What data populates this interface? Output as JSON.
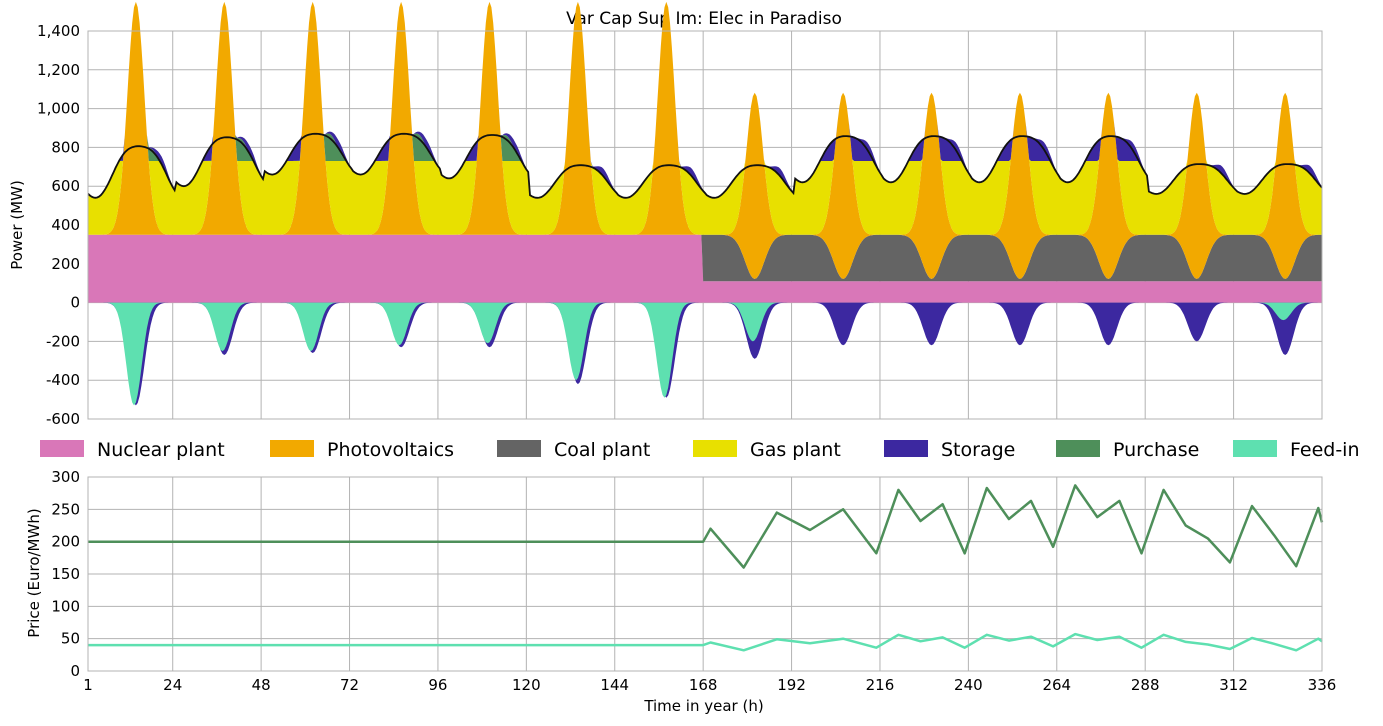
{
  "chart_data": [
    {
      "type": "area",
      "title": "Var Cap Sup Im: Elec in Paradiso",
      "xlabel": "",
      "ylabel": "Power (MW)",
      "xlim": [
        1,
        336
      ],
      "ylim": [
        -600,
        1400
      ],
      "yticks": [
        -600,
        -400,
        -200,
        0,
        200,
        400,
        600,
        800,
        1000,
        1200,
        1400
      ],
      "ytick_labels": [
        "-600",
        "-400",
        "-200",
        "0",
        "200",
        "400",
        "600",
        "800",
        "1,000",
        "1,200",
        "1,400"
      ],
      "grid": true,
      "stacked": true,
      "legend": {
        "placement": "below",
        "entries": [
          {
            "name": "Nuclear plant",
            "color": "#d977b8"
          },
          {
            "name": "Photovoltaics",
            "color": "#f2a900"
          },
          {
            "name": "Coal plant",
            "color": "#646464"
          },
          {
            "name": "Gas plant",
            "color": "#e8e000"
          },
          {
            "name": "Storage",
            "color": "#3c28a0"
          },
          {
            "name": "Purchase",
            "color": "#4e8f5a"
          },
          {
            "name": "Feed-in",
            "color": "#5ee0b0"
          }
        ]
      },
      "series": [
        {
          "name": "Nuclear plant",
          "values_by_period": [
            {
              "x_from": 1,
              "x_to": 168,
              "value": 350
            },
            {
              "x_from": 168,
              "x_to": 336,
              "value": 110
            }
          ]
        },
        {
          "name": "Coal plant",
          "values_by_period": [
            {
              "x_from": 1,
              "x_to": 168,
              "value": 0
            },
            {
              "x_from": 168,
              "x_to": 336,
              "value": 240
            }
          ],
          "daily_peak": [
            0,
            0,
            0,
            0,
            0,
            0,
            0,
            0,
            800,
            810,
            820,
            830,
            890,
            450
          ]
        },
        {
          "name": "Photovoltaics",
          "daily_peak": [
            1200,
            1200,
            1200,
            1200,
            1200,
            1200,
            1200,
            960,
            960,
            960,
            960,
            960,
            960,
            960
          ]
        },
        {
          "name": "Gas plant",
          "typical_level": 730
        },
        {
          "name": "Storage",
          "daily_min": [
            -530,
            -270,
            -260,
            -230,
            -230,
            -420,
            -490,
            -290,
            -220,
            -220,
            -220,
            -220,
            -200,
            -270
          ]
        },
        {
          "name": "Purchase",
          "daily_peak": [
            960,
            960,
            960,
            960,
            960,
            0,
            0,
            0,
            0,
            0,
            0,
            0,
            0,
            0
          ]
        },
        {
          "name": "Feed-in",
          "daily_min": [
            -530,
            -250,
            -250,
            -220,
            -210,
            -400,
            -490,
            -200,
            0,
            0,
            0,
            0,
            0,
            -90
          ]
        }
      ],
      "line": {
        "name": "Demand",
        "color": "#111111",
        "daily_peak": [
          920,
          960,
          960,
          960,
          960,
          780,
          780,
          780,
          960,
          960,
          960,
          960,
          780,
          780
        ],
        "daily_min": [
          540,
          600,
          660,
          660,
          640,
          540,
          540,
          540,
          620,
          620,
          620,
          620,
          560,
          560
        ]
      }
    },
    {
      "type": "line",
      "title": "",
      "xlabel": "Time in year (h)",
      "ylabel": "Price (Euro/MWh)",
      "xlim": [
        1,
        336
      ],
      "ylim": [
        0,
        300
      ],
      "xticks": [
        1,
        24,
        48,
        72,
        96,
        120,
        144,
        168,
        192,
        216,
        240,
        264,
        288,
        312,
        336
      ],
      "xtick_labels": [
        "1",
        "24",
        "48",
        "72",
        "96",
        "120",
        "144",
        "168",
        "192",
        "216",
        "240",
        "264",
        "288",
        "312",
        "336"
      ],
      "yticks": [
        0,
        50,
        100,
        150,
        200,
        250,
        300
      ],
      "ytick_labels": [
        "0",
        "50",
        "100",
        "150",
        "200",
        "250",
        "300"
      ],
      "grid": true,
      "series": [
        {
          "name": "Purchase",
          "color": "#4e8f5a",
          "x": [
            1,
            168,
            170,
            179,
            188,
            197,
            206,
            215,
            221,
            227,
            233,
            239,
            245,
            251,
            257,
            263,
            269,
            275,
            281,
            287,
            293,
            299,
            305,
            311,
            317,
            323,
            329,
            335,
            336
          ],
          "values": [
            200,
            200,
            220,
            160,
            245,
            218,
            250,
            182,
            280,
            232,
            258,
            182,
            283,
            235,
            263,
            192,
            287,
            238,
            263,
            182,
            280,
            225,
            205,
            168,
            255,
            210,
            162,
            252,
            230
          ]
        },
        {
          "name": "Feed-in",
          "color": "#5ee0b0",
          "x": [
            1,
            168,
            170,
            179,
            188,
            197,
            206,
            215,
            221,
            227,
            233,
            239,
            245,
            251,
            257,
            263,
            269,
            275,
            281,
            287,
            293,
            299,
            305,
            311,
            317,
            323,
            329,
            335,
            336
          ],
          "values": [
            40,
            40,
            44,
            32,
            49,
            43,
            50,
            36,
            56,
            46,
            52,
            36,
            56,
            47,
            53,
            38,
            57,
            48,
            53,
            36,
            56,
            45,
            41,
            34,
            51,
            42,
            32,
            50,
            46
          ]
        }
      ]
    }
  ]
}
